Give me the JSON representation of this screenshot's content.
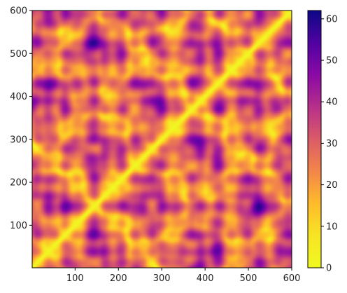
{
  "chart_data": {
    "type": "heatmap",
    "title": "",
    "xlabel": "",
    "ylabel": "",
    "xlim": [
      1,
      600
    ],
    "ylim": [
      1,
      600
    ],
    "x_ticks": [
      100,
      200,
      300,
      400,
      500,
      600
    ],
    "y_ticks": [
      100,
      200,
      300,
      400,
      500,
      600
    ],
    "colormap": "plasma_r",
    "colorbar": {
      "range": [
        0,
        62
      ],
      "ticks": [
        0,
        10,
        20,
        30,
        40,
        50,
        60
      ]
    },
    "description_values": {
      "diagonal_value": 0,
      "max_value": 62
    }
  }
}
